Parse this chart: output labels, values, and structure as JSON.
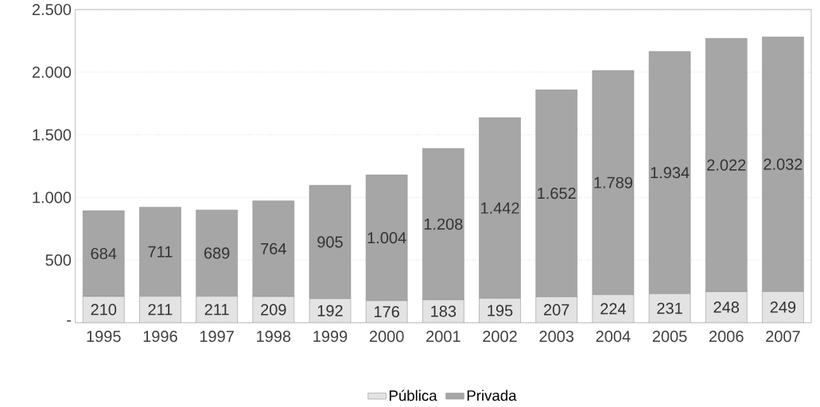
{
  "chart_data": {
    "type": "bar",
    "stacked": true,
    "categories": [
      "1995",
      "1996",
      "1997",
      "1998",
      "1999",
      "2000",
      "2001",
      "2002",
      "2003",
      "2004",
      "2005",
      "2006",
      "2007"
    ],
    "series": [
      {
        "name": "Pública",
        "color": "#e3e3e3",
        "values": [
          210,
          211,
          211,
          209,
          192,
          176,
          183,
          195,
          207,
          224,
          231,
          248,
          249
        ],
        "value_labels": [
          "210",
          "211",
          "211",
          "209",
          "192",
          "176",
          "183",
          "195",
          "207",
          "224",
          "231",
          "248",
          "249"
        ]
      },
      {
        "name": "Privada",
        "color": "#a6a6a6",
        "values": [
          684,
          711,
          689,
          764,
          905,
          1004,
          1208,
          1442,
          1652,
          1789,
          1934,
          2022,
          2032
        ],
        "value_labels": [
          "684",
          "711",
          "689",
          "764",
          "905",
          "1.004",
          "1.208",
          "1.442",
          "1.652",
          "1.789",
          "1.934",
          "2.022",
          "2.032"
        ]
      }
    ],
    "ylim": [
      0,
      2500
    ],
    "yticks": [
      {
        "value": 0,
        "label": "-"
      },
      500,
      {
        "value": 1000,
        "label": "1.000"
      },
      {
        "value": 1500,
        "label": "1.500"
      },
      {
        "value": 2000,
        "label": "2.000"
      },
      {
        "value": 2500,
        "label": "2.500"
      }
    ],
    "grid": "y",
    "legend": "bottom"
  }
}
